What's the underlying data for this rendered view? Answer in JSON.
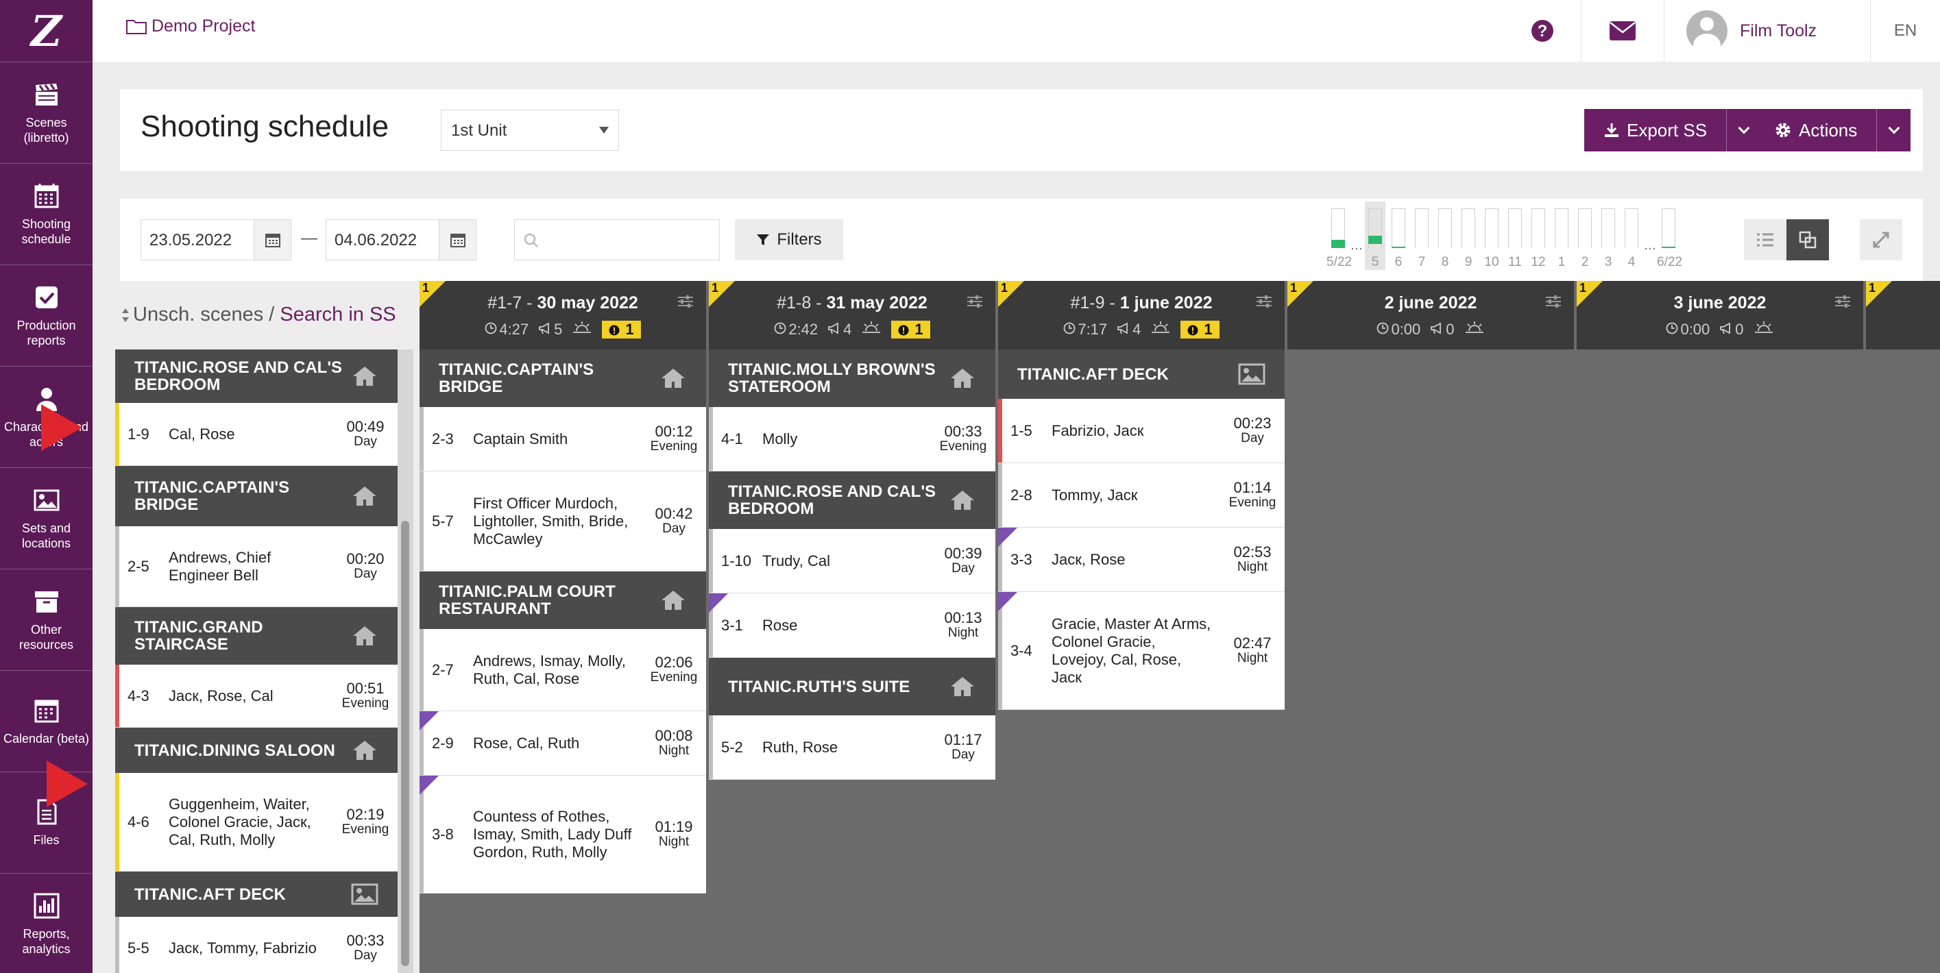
{
  "app": {
    "logo": "Z"
  },
  "sidebar": {
    "items": [
      {
        "label": "Scenes (libretto)",
        "icon": "clapperboard-icon"
      },
      {
        "label": "Shooting schedule",
        "icon": "calendar-grid-icon"
      },
      {
        "label": "Production reports",
        "icon": "checkbox-icon"
      },
      {
        "label": "Characters and actors",
        "icon": "user-icon"
      },
      {
        "label": "Sets and locations",
        "icon": "image-icon"
      },
      {
        "label": "Other resources",
        "icon": "archive-icon"
      },
      {
        "label": "Calendar (beta)",
        "icon": "calendar-icon"
      },
      {
        "label": "Files",
        "icon": "file-icon"
      },
      {
        "label": "Reports, analytics",
        "icon": "bar-chart-icon"
      }
    ]
  },
  "topbar": {
    "project": "Demo Project",
    "user": "Film Toolz",
    "lang": "EN"
  },
  "header": {
    "title": "Shooting schedule",
    "unit": "1st Unit",
    "export_label": "Export SS",
    "actions_label": "Actions"
  },
  "controls": {
    "date_from": "23.05.2022",
    "date_to": "04.06.2022",
    "dash": "—",
    "filters_label": "Filters",
    "search_placeholder": "",
    "mini_chart": {
      "labels": [
        "5/22",
        "…",
        "5",
        "6",
        "7",
        "8",
        "9",
        "10",
        "11",
        "12",
        "1",
        "2",
        "3",
        "4",
        "…",
        "6/22"
      ],
      "fill": [
        0.2,
        null,
        0.2,
        0.03,
        0,
        0,
        0,
        0,
        0,
        0,
        0,
        0,
        0,
        0,
        null,
        0.03
      ]
    }
  },
  "unscheduled": {
    "title": "Unsch. scenes",
    "sep": " / ",
    "search_link": "Search in SS",
    "sets": [
      {
        "name": "TITANIC.ROSE AND CAL'S BEDROOM",
        "icon": "home-icon",
        "scenes": [
          {
            "num": "1-9",
            "names": "Cal, Rose",
            "time": "00:49",
            "tod": "Day",
            "stripe": "#f2d024"
          }
        ]
      },
      {
        "name": "TITANIC.CAPTAIN'S BRIDGE",
        "icon": "home-icon",
        "scenes": [
          {
            "num": "2-5",
            "names": "Andrews, Chief Engineer Bell",
            "time": "00:20",
            "tod": "Day",
            "stripe": "#bdbdbd"
          }
        ]
      },
      {
        "name": "TITANIC.GRAND STAIRCASE",
        "icon": "home-icon",
        "scenes": [
          {
            "num": "4-3",
            "names": "Jacк, Rose, Cal",
            "time": "00:51",
            "tod": "Evening",
            "stripe": "#e05050"
          }
        ]
      },
      {
        "name": "TITANIC.DINING SALOON",
        "icon": "home-icon",
        "scenes": [
          {
            "num": "4-6",
            "names": "Guggenheim, Waiter, Colonel Gracie, Jacк, Cal, Ruth, Molly",
            "time": "02:19",
            "tod": "Evening",
            "stripe": "#f2d024"
          }
        ]
      },
      {
        "name": "TITANIC.AFT DECK",
        "icon": "image-icon",
        "scenes": [
          {
            "num": "5-5",
            "names": "Jacк, Tommy, Fabrizio",
            "time": "00:33",
            "tod": "Day",
            "stripe": "#bdbdbd"
          }
        ]
      }
    ]
  },
  "days": [
    {
      "flag": "1",
      "prefix": "#1-7 - ",
      "date": "30 may 2022",
      "duration": "4:27",
      "count": "5",
      "warn": "1",
      "sets": [
        {
          "name": "TITANIC.CAPTAIN'S BRIDGE",
          "icon": "home-icon",
          "scenes": [
            {
              "num": "2-3",
              "names": "Captain Smith",
              "time": "00:12",
              "tod": "Evening"
            },
            {
              "num": "5-7",
              "names": "First Officer Murdoch, Lightoller, Smith, Bride, McCawley",
              "time": "00:42",
              "tod": "Day"
            }
          ]
        },
        {
          "name": "TITANIC.PALM COURT RESTAURANT",
          "icon": "home-icon",
          "scenes": [
            {
              "num": "2-7",
              "names": "Andrews, Ismay, Molly, Ruth, Cal, Rose",
              "time": "02:06",
              "tod": "Evening"
            },
            {
              "num": "2-9",
              "names": "Rose, Cal, Ruth",
              "time": "00:08",
              "tod": "Night",
              "corner": true
            },
            {
              "num": "3-8",
              "names": "Countess of Rothes, Ismay, Smith, Lady Duff Gordon, Ruth, Molly",
              "time": "01:19",
              "tod": "Night",
              "corner": true
            }
          ]
        }
      ]
    },
    {
      "flag": "1",
      "prefix": "#1-8 - ",
      "date": "31 may 2022",
      "duration": "2:42",
      "count": "4",
      "warn": "1",
      "sets": [
        {
          "name": "TITANIC.MOLLY BROWN'S STATEROOM",
          "icon": "home-icon",
          "scenes": [
            {
              "num": "4-1",
              "names": "Molly",
              "time": "00:33",
              "tod": "Evening"
            }
          ]
        },
        {
          "name": "TITANIC.ROSE AND CAL'S BEDROOM",
          "icon": "home-icon",
          "scenes": [
            {
              "num": "1-10",
              "names": "Trudy, Cal",
              "time": "00:39",
              "tod": "Day"
            },
            {
              "num": "3-1",
              "names": "Rose",
              "time": "00:13",
              "tod": "Night",
              "corner": true
            }
          ]
        },
        {
          "name": "TITANIC.RUTH'S SUITE",
          "icon": "home-icon",
          "scenes": [
            {
              "num": "5-2",
              "names": "Ruth, Rose",
              "time": "01:17",
              "tod": "Day"
            }
          ]
        }
      ]
    },
    {
      "flag": "1",
      "prefix": "#1-9 - ",
      "date": "1 june 2022",
      "duration": "7:17",
      "count": "4",
      "warn": "1",
      "sets": [
        {
          "name": "TITANIC.AFT DECK",
          "icon": "image-icon",
          "scenes": [
            {
              "num": "1-5",
              "names": "Fabrizio, Jacк",
              "time": "00:23",
              "tod": "Day",
              "stripe": "#e05050"
            },
            {
              "num": "2-8",
              "names": "Tommy, Jacк",
              "time": "01:14",
              "tod": "Evening"
            },
            {
              "num": "3-3",
              "names": "Jacк, Rose",
              "time": "02:53",
              "tod": "Night",
              "corner": true
            },
            {
              "num": "3-4",
              "names": "Gracie, Master At Arms, Colonel Gracie, Lovejoy, Cal, Rose, Jacк",
              "time": "02:47",
              "tod": "Night",
              "corner": true
            }
          ]
        }
      ]
    },
    {
      "flag": "1",
      "prefix": "",
      "date": "2 june 2022",
      "duration": "0:00",
      "count": "0",
      "warn": null,
      "sets": []
    },
    {
      "flag": "1",
      "prefix": "",
      "date": "3 june 2022",
      "duration": "0:00",
      "count": "0",
      "warn": null,
      "sets": []
    },
    {
      "flag": "1",
      "prefix": "",
      "date": "",
      "duration": "",
      "count": "",
      "warn": null,
      "sets": [],
      "partial": true
    }
  ]
}
